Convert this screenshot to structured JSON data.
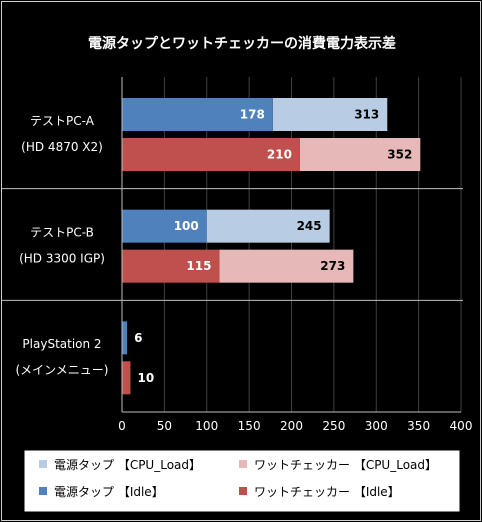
{
  "chart_data": {
    "type": "bar",
    "orientation": "horizontal",
    "title": "電源タップとワットチェッカーの消費電力表示差",
    "groups": [
      {
        "label_lines": [
          "テストPC-A",
          "(HD 4870  X2)"
        ],
        "bars": [
          {
            "idle": 178,
            "load": 313
          },
          {
            "idle": 210,
            "load": 352
          }
        ]
      },
      {
        "label_lines": [
          "テストPC-B",
          "(HD 3300  IGP)"
        ],
        "bars": [
          {
            "idle": 100,
            "load": 245
          },
          {
            "idle": 115,
            "load": 273
          }
        ]
      },
      {
        "label_lines": [
          "PlayStation 2",
          "(メインメニュー)"
        ],
        "bars": [
          {
            "idle": 6
          },
          {
            "idle": 10
          }
        ]
      }
    ],
    "series": [
      {
        "name": "電源タップ 【CPU_Load】",
        "color": "#b8cce4"
      },
      {
        "name": "ワットチェッカー 【CPU_Load】",
        "color": "#e6b9b8"
      },
      {
        "name": "電源タップ 【Idle】",
        "color": "#4f81bd"
      },
      {
        "name": "ワットチェッカー 【Idle】",
        "color": "#c0504d"
      }
    ],
    "x_ticks": [
      "0",
      "50",
      "100",
      "150",
      "200",
      "250",
      "300",
      "350",
      "400"
    ],
    "xlim": [
      0,
      400
    ],
    "grid": "vertical",
    "legend_position": "bottom"
  }
}
